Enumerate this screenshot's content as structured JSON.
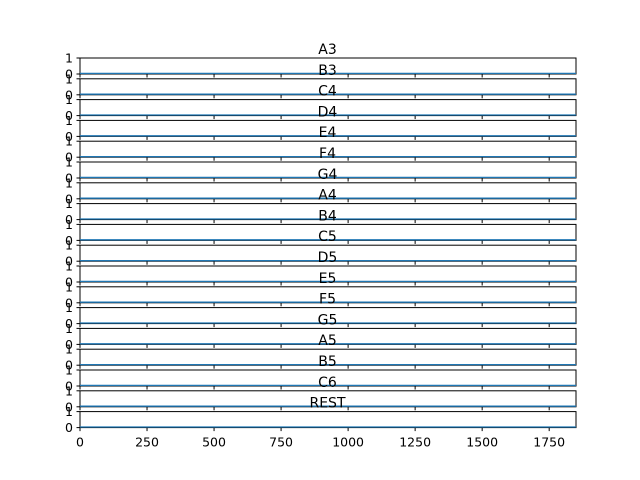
{
  "chart_data": {
    "type": "line",
    "panels": [
      {
        "title": "A3",
        "ylim": [
          0,
          1
        ],
        "yticks": [
          "0",
          "1"
        ]
      },
      {
        "title": "B3",
        "ylim": [
          0,
          1
        ],
        "yticks": [
          "0",
          "1"
        ]
      },
      {
        "title": "C4",
        "ylim": [
          0,
          1
        ],
        "yticks": [
          "0",
          "1"
        ]
      },
      {
        "title": "D4",
        "ylim": [
          0,
          1
        ],
        "yticks": [
          "0",
          "1"
        ]
      },
      {
        "title": "E4",
        "ylim": [
          0,
          1
        ],
        "yticks": [
          "0",
          "1"
        ]
      },
      {
        "title": "F4",
        "ylim": [
          0,
          1
        ],
        "yticks": [
          "0",
          "1"
        ]
      },
      {
        "title": "G4",
        "ylim": [
          0,
          1
        ],
        "yticks": [
          "0",
          "1"
        ]
      },
      {
        "title": "A4",
        "ylim": [
          0,
          1
        ],
        "yticks": [
          "0",
          "1"
        ]
      },
      {
        "title": "B4",
        "ylim": [
          0,
          1
        ],
        "yticks": [
          "0",
          "1"
        ]
      },
      {
        "title": "C5",
        "ylim": [
          0,
          1
        ],
        "yticks": [
          "0",
          "1"
        ]
      },
      {
        "title": "D5",
        "ylim": [
          0,
          1
        ],
        "yticks": [
          "0",
          "1"
        ]
      },
      {
        "title": "E5",
        "ylim": [
          0,
          1
        ],
        "yticks": [
          "0",
          "1"
        ]
      },
      {
        "title": "F5",
        "ylim": [
          0,
          1
        ],
        "yticks": [
          "0",
          "1"
        ]
      },
      {
        "title": "G5",
        "ylim": [
          0,
          1
        ],
        "yticks": [
          "0",
          "1"
        ]
      },
      {
        "title": "A5",
        "ylim": [
          0,
          1
        ],
        "yticks": [
          "0",
          "1"
        ]
      },
      {
        "title": "B5",
        "ylim": [
          0,
          1
        ],
        "yticks": [
          "0",
          "1"
        ]
      },
      {
        "title": "C6",
        "ylim": [
          0,
          1
        ],
        "yticks": [
          "0",
          "1"
        ]
      },
      {
        "title": "REST",
        "ylim": [
          0,
          1
        ],
        "yticks": [
          "0",
          "1"
        ]
      }
    ],
    "series": [
      {
        "x": [
          0,
          1850
        ],
        "y": [
          0,
          0
        ]
      }
    ],
    "xlim": [
      0,
      1850
    ],
    "xticks": [
      0,
      250,
      500,
      750,
      1000,
      1250,
      1500,
      1750
    ],
    "xtick_labels": [
      "0",
      "250",
      "500",
      "750",
      "1000",
      "1250",
      "1500",
      "1750"
    ],
    "grid": false,
    "colors": {
      "line": "#1f77b4",
      "axes": "#000000"
    }
  }
}
